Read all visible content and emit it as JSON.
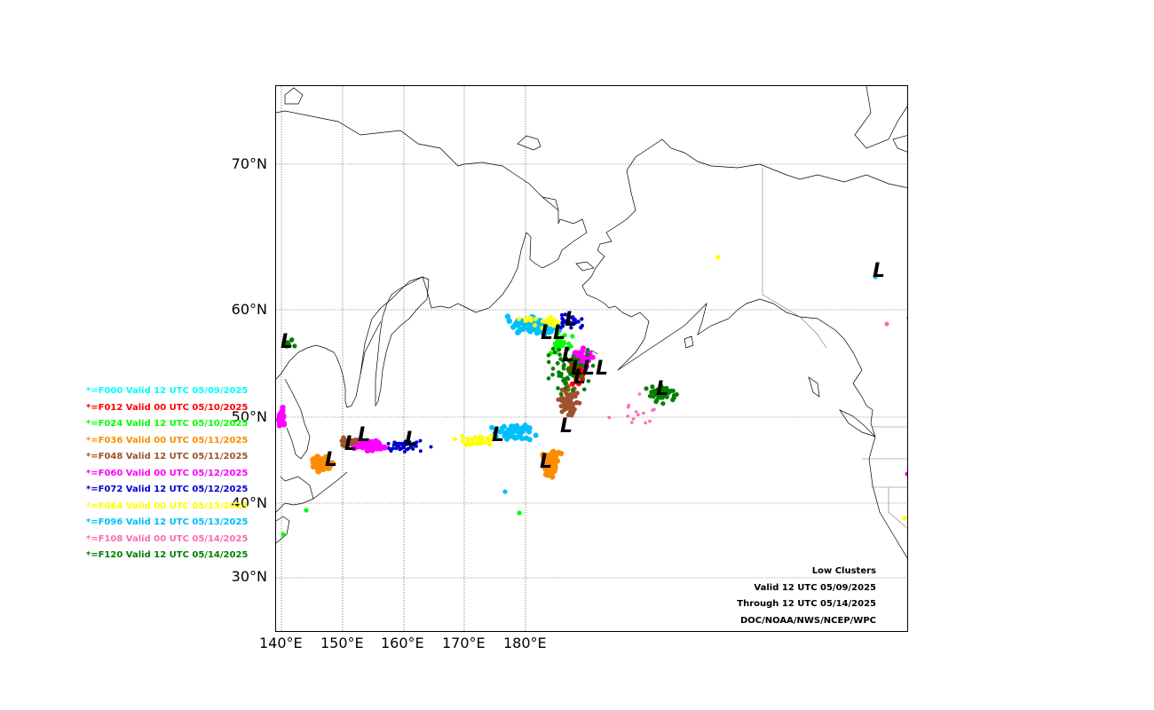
{
  "map": {
    "lat_labels": [
      "70°N",
      "60°N",
      "50°N",
      "40°N",
      "30°N"
    ],
    "lon_labels": [
      "140°E",
      "150°E",
      "160°E",
      "170°E",
      "180°E"
    ]
  },
  "legend": [
    {
      "label": "*=F000 Valid 12 UTC 05/09/2025",
      "color": "#00ffff"
    },
    {
      "label": "*=F012 Valid 00 UTC 05/10/2025",
      "color": "#ff0000"
    },
    {
      "label": "*=F024 Valid 12 UTC 05/10/2025",
      "color": "#00ff00"
    },
    {
      "label": "*=F036 Valid 00 UTC 05/11/2025",
      "color": "#ff8c00"
    },
    {
      "label": "*=F048 Valid 12 UTC 05/11/2025",
      "color": "#a0522d"
    },
    {
      "label": "*=F060 Valid 00 UTC 05/12/2025",
      "color": "#ff00ff"
    },
    {
      "label": "*=F072 Valid 12 UTC 05/12/2025",
      "color": "#0000cd"
    },
    {
      "label": "*=F084 Valid 00 UTC 05/13/2025",
      "color": "#ffff00"
    },
    {
      "label": "*=F096 Valid 12 UTC 05/13/2025",
      "color": "#00bfff"
    },
    {
      "label": "*=F108 Valid 00 UTC 05/14/2025",
      "color": "#ff69b4"
    },
    {
      "label": "*=F120 Valid 12 UTC 05/14/2025",
      "color": "#008000"
    }
  ],
  "info": {
    "title": "Low Clusters",
    "valid": "Valid 12 UTC 05/09/2025",
    "through": "Through 12 UTC 05/14/2025",
    "credit": "DOC/NOAA/NWS/NCEP/WPC"
  }
}
